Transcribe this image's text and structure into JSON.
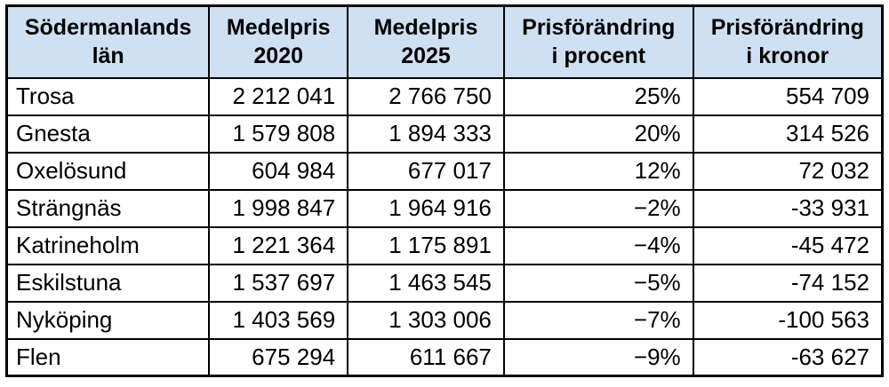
{
  "colors": {
    "header_bg": "#cfe0f2",
    "border": "#000000",
    "text": "#000000",
    "page_bg": "#ffffff"
  },
  "table": {
    "headers": [
      {
        "line1": "Södermanlands",
        "line2": "län"
      },
      {
        "line1": "Medelpris",
        "line2": "2020"
      },
      {
        "line1": "Medelpris",
        "line2": "2025"
      },
      {
        "line1": "Prisförändring",
        "line2": "i procent"
      },
      {
        "line1": "Prisförändring",
        "line2": "i kronor"
      }
    ],
    "rows": [
      {
        "municipality": "Trosa",
        "price_2020": "2 212 041",
        "price_2025": "2 766 750",
        "change_percent": "25%",
        "change_kronor": "554 709"
      },
      {
        "municipality": "Gnesta",
        "price_2020": "1 579 808",
        "price_2025": "1 894 333",
        "change_percent": "20%",
        "change_kronor": "314 526"
      },
      {
        "municipality": "Oxelösund",
        "price_2020": "604 984",
        "price_2025": "677 017",
        "change_percent": "12%",
        "change_kronor": "72 032"
      },
      {
        "municipality": "Strängnäs",
        "price_2020": "1 998 847",
        "price_2025": "1 964 916",
        "change_percent": "−2%",
        "change_kronor": "-33 931"
      },
      {
        "municipality": "Katrineholm",
        "price_2020": "1 221 364",
        "price_2025": "1 175 891",
        "change_percent": "−4%",
        "change_kronor": "-45 472"
      },
      {
        "municipality": "Eskilstuna",
        "price_2020": "1 537 697",
        "price_2025": "1 463 545",
        "change_percent": "−5%",
        "change_kronor": "-74 152"
      },
      {
        "municipality": "Nyköping",
        "price_2020": "1 403 569",
        "price_2025": "1 303 006",
        "change_percent": "−7%",
        "change_kronor": "-100 563"
      },
      {
        "municipality": "Flen",
        "price_2020": "675 294",
        "price_2025": "611 667",
        "change_percent": "−9%",
        "change_kronor": "-63 627"
      }
    ]
  },
  "chart_data": {
    "type": "table",
    "title": "Södermanlands län",
    "columns": [
      "Södermanlands län",
      "Medelpris 2020",
      "Medelpris 2025",
      "Prisförändring i procent",
      "Prisförändring i kronor"
    ],
    "rows": [
      [
        "Trosa",
        2212041,
        2766750,
        "25%",
        554709
      ],
      [
        "Gnesta",
        1579808,
        1894333,
        "20%",
        314526
      ],
      [
        "Oxelösund",
        604984,
        677017,
        "12%",
        72032
      ],
      [
        "Strängnäs",
        1998847,
        1964916,
        "-2%",
        -33931
      ],
      [
        "Katrineholm",
        1221364,
        1175891,
        "-4%",
        -45472
      ],
      [
        "Eskilstuna",
        1537697,
        1463545,
        "-5%",
        -74152
      ],
      [
        "Nyköping",
        1403569,
        1303006,
        "-7%",
        -100563
      ],
      [
        "Flen",
        675294,
        611667,
        "-9%",
        -63627
      ]
    ]
  }
}
